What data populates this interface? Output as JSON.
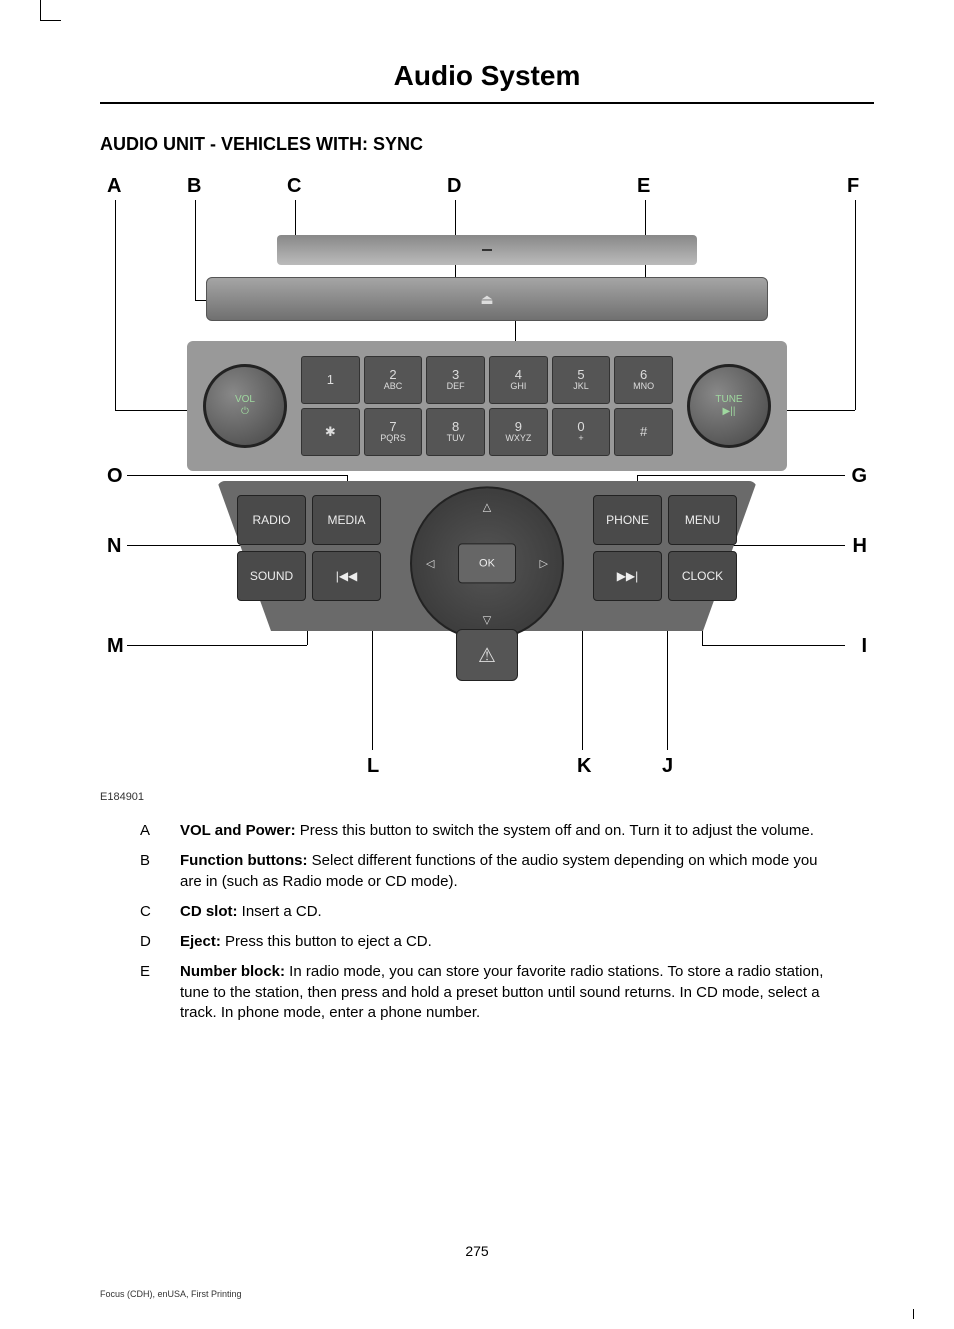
{
  "page_title": "Audio System",
  "section_heading": "AUDIO UNIT - VEHICLES WITH: SYNC",
  "diagram": {
    "image_id": "E184901",
    "callouts": {
      "A": "A",
      "B": "B",
      "C": "C",
      "D": "D",
      "E": "E",
      "F": "F",
      "G": "G",
      "H": "H",
      "I": "I",
      "J": "J",
      "K": "K",
      "L": "L",
      "M": "M",
      "N": "N",
      "O": "O"
    },
    "knob_left": "VOL\n⏻",
    "knob_right": "TUNE\n▶||",
    "eject_symbol": "⏏",
    "keypad": [
      {
        "num": "1",
        "sub": ""
      },
      {
        "num": "2",
        "sub": "ABC"
      },
      {
        "num": "3",
        "sub": "DEF"
      },
      {
        "num": "4",
        "sub": "GHI"
      },
      {
        "num": "5",
        "sub": "JKL"
      },
      {
        "num": "6",
        "sub": "MNO"
      },
      {
        "num": "✱",
        "sub": ""
      },
      {
        "num": "7",
        "sub": "PQRS"
      },
      {
        "num": "8",
        "sub": "TUV"
      },
      {
        "num": "9",
        "sub": "WXYZ"
      },
      {
        "num": "0",
        "sub": "+"
      },
      {
        "num": "#",
        "sub": ""
      }
    ],
    "lower_buttons": {
      "radio": "RADIO",
      "media": "MEDIA",
      "phone": "PHONE",
      "menu": "MENU",
      "sound": "SOUND",
      "clock": "CLOCK",
      "prev": "|◀◀",
      "next": "▶▶|",
      "ok": "OK",
      "up": "△",
      "down": "▽",
      "left": "◁",
      "right": "▷",
      "hazard": "⚠"
    }
  },
  "definitions": [
    {
      "letter": "A",
      "title": "VOL and Power:",
      "text": " Press this button to switch the system off and on. Turn it to adjust the volume."
    },
    {
      "letter": "B",
      "title": "Function buttons:",
      "text": " Select different functions of the audio system depending on which mode you are in (such as Radio mode or CD mode)."
    },
    {
      "letter": "C",
      "title": "CD slot:",
      "text": " Insert a CD."
    },
    {
      "letter": "D",
      "title": "Eject:",
      "text": " Press this button to eject a CD."
    },
    {
      "letter": "E",
      "title": "Number block:",
      "text": " In radio mode, you can store your favorite radio stations. To store a radio station, tune to the station, then press and hold a preset button until sound returns. In CD mode, select a track. In phone mode, enter a phone number."
    }
  ],
  "page_number": "275",
  "footer": "Focus (CDH), enUSA, First Printing"
}
